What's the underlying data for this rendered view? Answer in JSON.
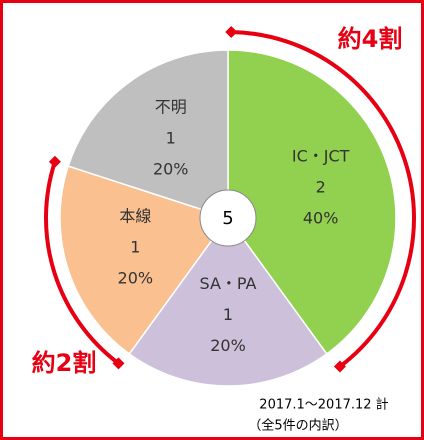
{
  "chart_data": {
    "type": "pie",
    "categories": [
      "IC・JCT",
      "SA・PA",
      "本線",
      "不明"
    ],
    "counts": [
      2,
      1,
      1,
      1
    ],
    "values": [
      40,
      20,
      20,
      20
    ],
    "value_labels": [
      "40%",
      "20%",
      "20%",
      "20%"
    ],
    "colors": [
      "#92d050",
      "#ccc0da",
      "#fac090",
      "#bfbfbf"
    ],
    "total": 5,
    "annotations": [
      "約4割",
      "約2割"
    ],
    "footer": [
      "2017.1～2017.12 計",
      "（全5件の内訳）"
    ]
  }
}
